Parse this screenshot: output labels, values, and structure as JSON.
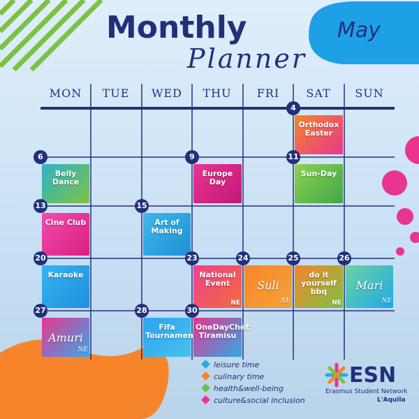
{
  "header": {
    "title": "Monthly",
    "subtitle": "Planner",
    "month": "May"
  },
  "days": [
    "MON",
    "TUE",
    "WED",
    "THU",
    "FRI",
    "SAT",
    "SUN"
  ],
  "events": [
    {
      "date": "4",
      "label": "Orthodox Easter",
      "colors": [
        "#f7862a",
        "#e8358f"
      ]
    },
    {
      "date": "6",
      "label": "Belly Dance",
      "colors": [
        "#2fb4c8",
        "#7cc242"
      ]
    },
    {
      "date": "9",
      "label": "Europe Day",
      "colors": [
        "#e8358f",
        "#c2187a"
      ]
    },
    {
      "date": "11",
      "label": "Sun-Day",
      "colors": [
        "#8fd14f",
        "#3ea84a"
      ]
    },
    {
      "date": "13",
      "label": "Cine Club",
      "colors": [
        "#f24bb0",
        "#d9207f"
      ]
    },
    {
      "date": "15",
      "label": "Art of Making",
      "colors": [
        "#3fb8ea",
        "#1f8fd6"
      ]
    },
    {
      "date": "20",
      "label": "Karaoke",
      "colors": [
        "#36b4ef",
        "#1e8fe0"
      ]
    },
    {
      "date": "23",
      "label": "National Event",
      "badge": "NE",
      "colors": [
        "#f0428e",
        "#f26a3c"
      ]
    },
    {
      "date": "24",
      "label": "Suli",
      "badge": "NE",
      "colors": [
        "#f7862a",
        "#f4a23a"
      ]
    },
    {
      "date": "25",
      "label": "do it yourself bbq",
      "badge": "NE",
      "colors": [
        "#f6842a",
        "#7cc242"
      ]
    },
    {
      "date": "26",
      "label": "Mari",
      "badge": "NE",
      "colors": [
        "#6cd3a0",
        "#1fa8e8"
      ]
    },
    {
      "date": "27",
      "label": "Amuri",
      "badge": "NE",
      "colors": [
        "#e8358f",
        "#3aa8e8"
      ]
    },
    {
      "date": "28",
      "label": "Fifa Tournament",
      "colors": [
        "#2ea3ef",
        "#47c1f0"
      ]
    },
    {
      "date": "30",
      "label": "OneDayChef: Tiramisu",
      "colors": [
        "#e8358f",
        "#2fa8e8"
      ]
    }
  ],
  "legend": [
    {
      "label": "leisure time",
      "color": "#29a9e0"
    },
    {
      "label": "culinary time",
      "color": "#f6842a"
    },
    {
      "label": "health&well-being",
      "color": "#6cbf4b"
    },
    {
      "label": "culture&social inclusion",
      "color": "#e8358f"
    }
  ],
  "logo": {
    "name": "ESN",
    "full": "Erasmus Student Network",
    "city": "L'Aquila"
  }
}
